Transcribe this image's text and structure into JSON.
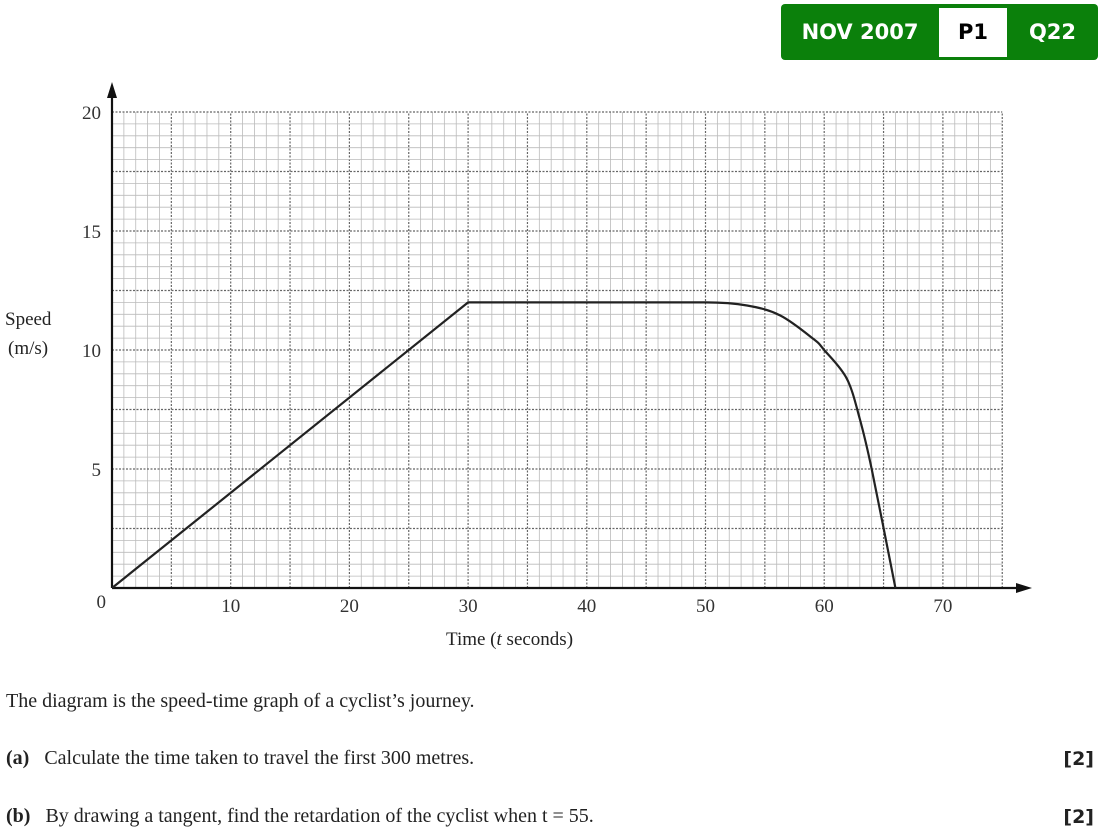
{
  "badge": {
    "session": "NOV 2007",
    "paper": "P1",
    "question": "Q22",
    "color": "#0b800b"
  },
  "chart_data": {
    "type": "line",
    "xlabel_prefix": "Time (",
    "xlabel_var": "t",
    "xlabel_suffix": " seconds)",
    "ylabel_line1": "Speed",
    "ylabel_line2": "(m/s)",
    "xlim": [
      0,
      75
    ],
    "ylim": [
      0,
      20
    ],
    "x_ticks": [
      10,
      20,
      30,
      40,
      50,
      60,
      70
    ],
    "y_ticks": [
      0,
      5,
      10,
      15,
      20
    ],
    "grid": true,
    "series": [
      {
        "points": [
          [
            0,
            0
          ],
          [
            30,
            12
          ],
          [
            50,
            12
          ],
          [
            53.5,
            11.87
          ],
          [
            56.3,
            11.45
          ],
          [
            59.1,
            10.46
          ],
          [
            60,
            10
          ],
          [
            61.9,
            8.8
          ],
          [
            63,
            7.1
          ],
          [
            64,
            5
          ],
          [
            66,
            0
          ]
        ]
      }
    ]
  },
  "question": {
    "intro": "The diagram is the speed-time graph of a cyclist’s journey.",
    "parts": [
      {
        "label": "(a)",
        "text": "Calculate the time taken to travel the first 300 metres.",
        "marks": "[2]"
      },
      {
        "label": "(b)",
        "text": "By drawing a tangent, find the retardation of the cyclist when t = 55.",
        "marks": "[2]"
      }
    ]
  }
}
